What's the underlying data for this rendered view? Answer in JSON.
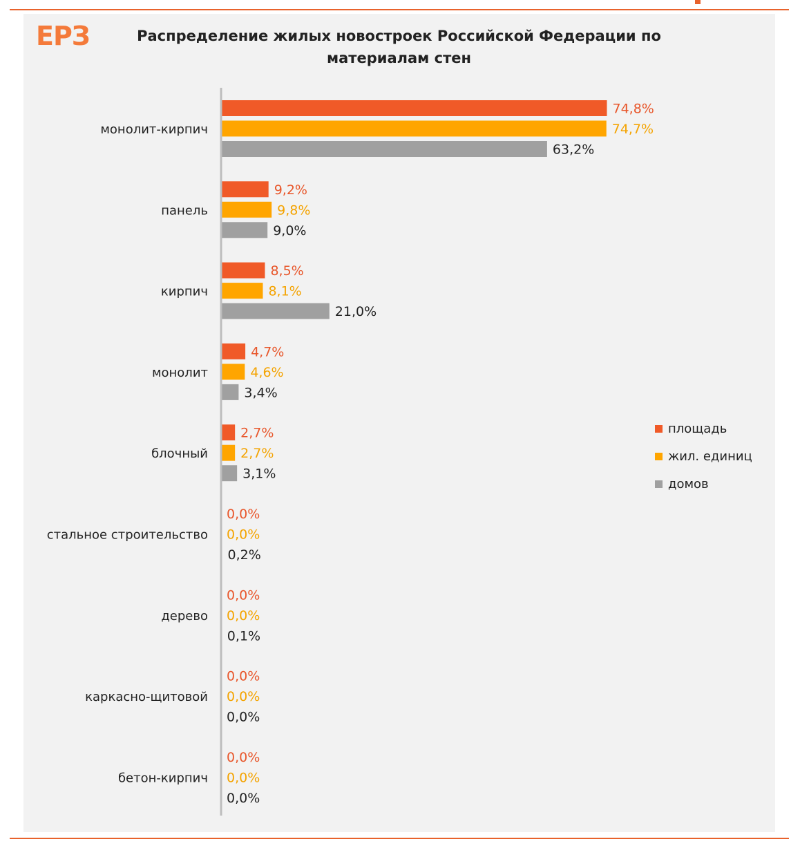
{
  "logo": {
    "text": "ЕРЗ"
  },
  "title": "Распределение  жилых новостроек Российской Федерации  по\nматериалам  стен",
  "legend": {
    "placement": "right",
    "items": [
      {
        "label": "площадь",
        "color": "#f05a28"
      },
      {
        "label": "жил. единиц",
        "color": "#ffa500"
      },
      {
        "label": "домов",
        "color": "#a0a0a0"
      }
    ]
  },
  "chart_data": {
    "type": "bar",
    "orientation": "horizontal",
    "categories": [
      "монолит-кирпич",
      "панель",
      "кирпич",
      "монолит",
      "блочный",
      "стальное строительство",
      "дерево",
      "каркасно-щитовой",
      "бетон-кирпич"
    ],
    "series": [
      {
        "name": "площадь",
        "color": "#f05a28",
        "label_color": "#e8562a",
        "values": [
          74.8,
          9.2,
          8.5,
          4.7,
          2.7,
          0.0,
          0.0,
          0.0,
          0.0
        ],
        "labels": [
          "74,8%",
          "9,2%",
          "8,5%",
          "4,7%",
          "2,7%",
          "0,0%",
          "0,0%",
          "0,0%",
          "0,0%"
        ]
      },
      {
        "name": "жил. единиц",
        "color": "#ffa500",
        "label_color": "#f4a300",
        "values": [
          74.7,
          9.8,
          8.1,
          4.6,
          2.7,
          0.0,
          0.0,
          0.0,
          0.0
        ],
        "labels": [
          "74,7%",
          "9,8%",
          "8,1%",
          "4,6%",
          "2,7%",
          "0,0%",
          "0,0%",
          "0,0%",
          "0,0%"
        ]
      },
      {
        "name": "домов",
        "color": "#a0a0a0",
        "label_color": "#222222",
        "values": [
          63.2,
          9.0,
          21.0,
          3.4,
          3.1,
          0.2,
          0.1,
          0.0,
          0.0
        ],
        "labels": [
          "63,2%",
          "9,0%",
          "21,0%",
          "3,4%",
          "3,1%",
          "0,2%",
          "0,1%",
          "0,0%",
          "0,0%"
        ]
      }
    ],
    "xlim": [
      0,
      75
    ],
    "grid": false
  }
}
